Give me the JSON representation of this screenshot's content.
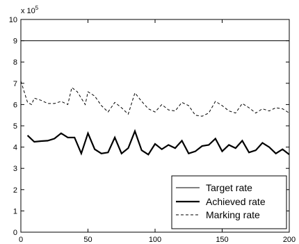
{
  "chart_data": {
    "type": "line",
    "title": "",
    "xlabel": "",
    "ylabel": "",
    "xlim": [
      0,
      200
    ],
    "ylim": [
      0,
      10
    ],
    "y_multiplier_label": "x 10",
    "y_multiplier_exponent": "5",
    "x_ticks": [
      0,
      50,
      100,
      150,
      200
    ],
    "y_ticks": [
      0,
      1,
      2,
      3,
      4,
      5,
      6,
      7,
      8,
      9,
      10
    ],
    "grid": false,
    "legend_position": "bottom-right",
    "series": [
      {
        "name": "Target rate",
        "style": "thin-solid",
        "x": [
          0,
          200
        ],
        "y": [
          9.0,
          9.0
        ]
      },
      {
        "name": "Achieved rate",
        "style": "thick-solid",
        "x": [
          5,
          10,
          15,
          20,
          25,
          30,
          35,
          40,
          45,
          50,
          55,
          60,
          65,
          70,
          75,
          80,
          85,
          90,
          95,
          100,
          105,
          110,
          115,
          120,
          125,
          130,
          135,
          140,
          145,
          150,
          155,
          160,
          165,
          170,
          175,
          180,
          185,
          190,
          195,
          200
        ],
        "y": [
          4.55,
          4.25,
          4.28,
          4.3,
          4.4,
          4.65,
          4.45,
          4.45,
          3.7,
          4.65,
          3.9,
          3.7,
          3.75,
          4.45,
          3.7,
          3.95,
          4.75,
          3.85,
          3.65,
          4.15,
          3.9,
          4.1,
          3.95,
          4.3,
          3.7,
          3.8,
          4.05,
          4.1,
          4.4,
          3.8,
          4.1,
          3.95,
          4.3,
          3.75,
          3.85,
          4.2,
          4.0,
          3.7,
          3.9,
          3.65
        ]
      },
      {
        "name": "Marking rate",
        "style": "dashed",
        "x": [
          0,
          5,
          8,
          10,
          15,
          20,
          25,
          30,
          35,
          38,
          42,
          48,
          50,
          55,
          60,
          65,
          70,
          75,
          80,
          85,
          90,
          95,
          100,
          105,
          110,
          115,
          120,
          125,
          130,
          135,
          140,
          145,
          150,
          155,
          160,
          165,
          170,
          175,
          180,
          185,
          190,
          195,
          200
        ],
        "y": [
          7.1,
          6.1,
          6.0,
          6.3,
          6.2,
          6.05,
          6.05,
          6.15,
          6.0,
          6.8,
          6.6,
          6.0,
          6.6,
          6.4,
          5.95,
          5.65,
          6.1,
          5.85,
          5.55,
          6.55,
          6.15,
          5.8,
          5.65,
          6.0,
          5.75,
          5.7,
          6.1,
          5.95,
          5.5,
          5.45,
          5.6,
          6.15,
          5.95,
          5.7,
          5.6,
          6.05,
          5.85,
          5.6,
          5.8,
          5.7,
          5.85,
          5.8,
          5.6
        ]
      }
    ]
  }
}
